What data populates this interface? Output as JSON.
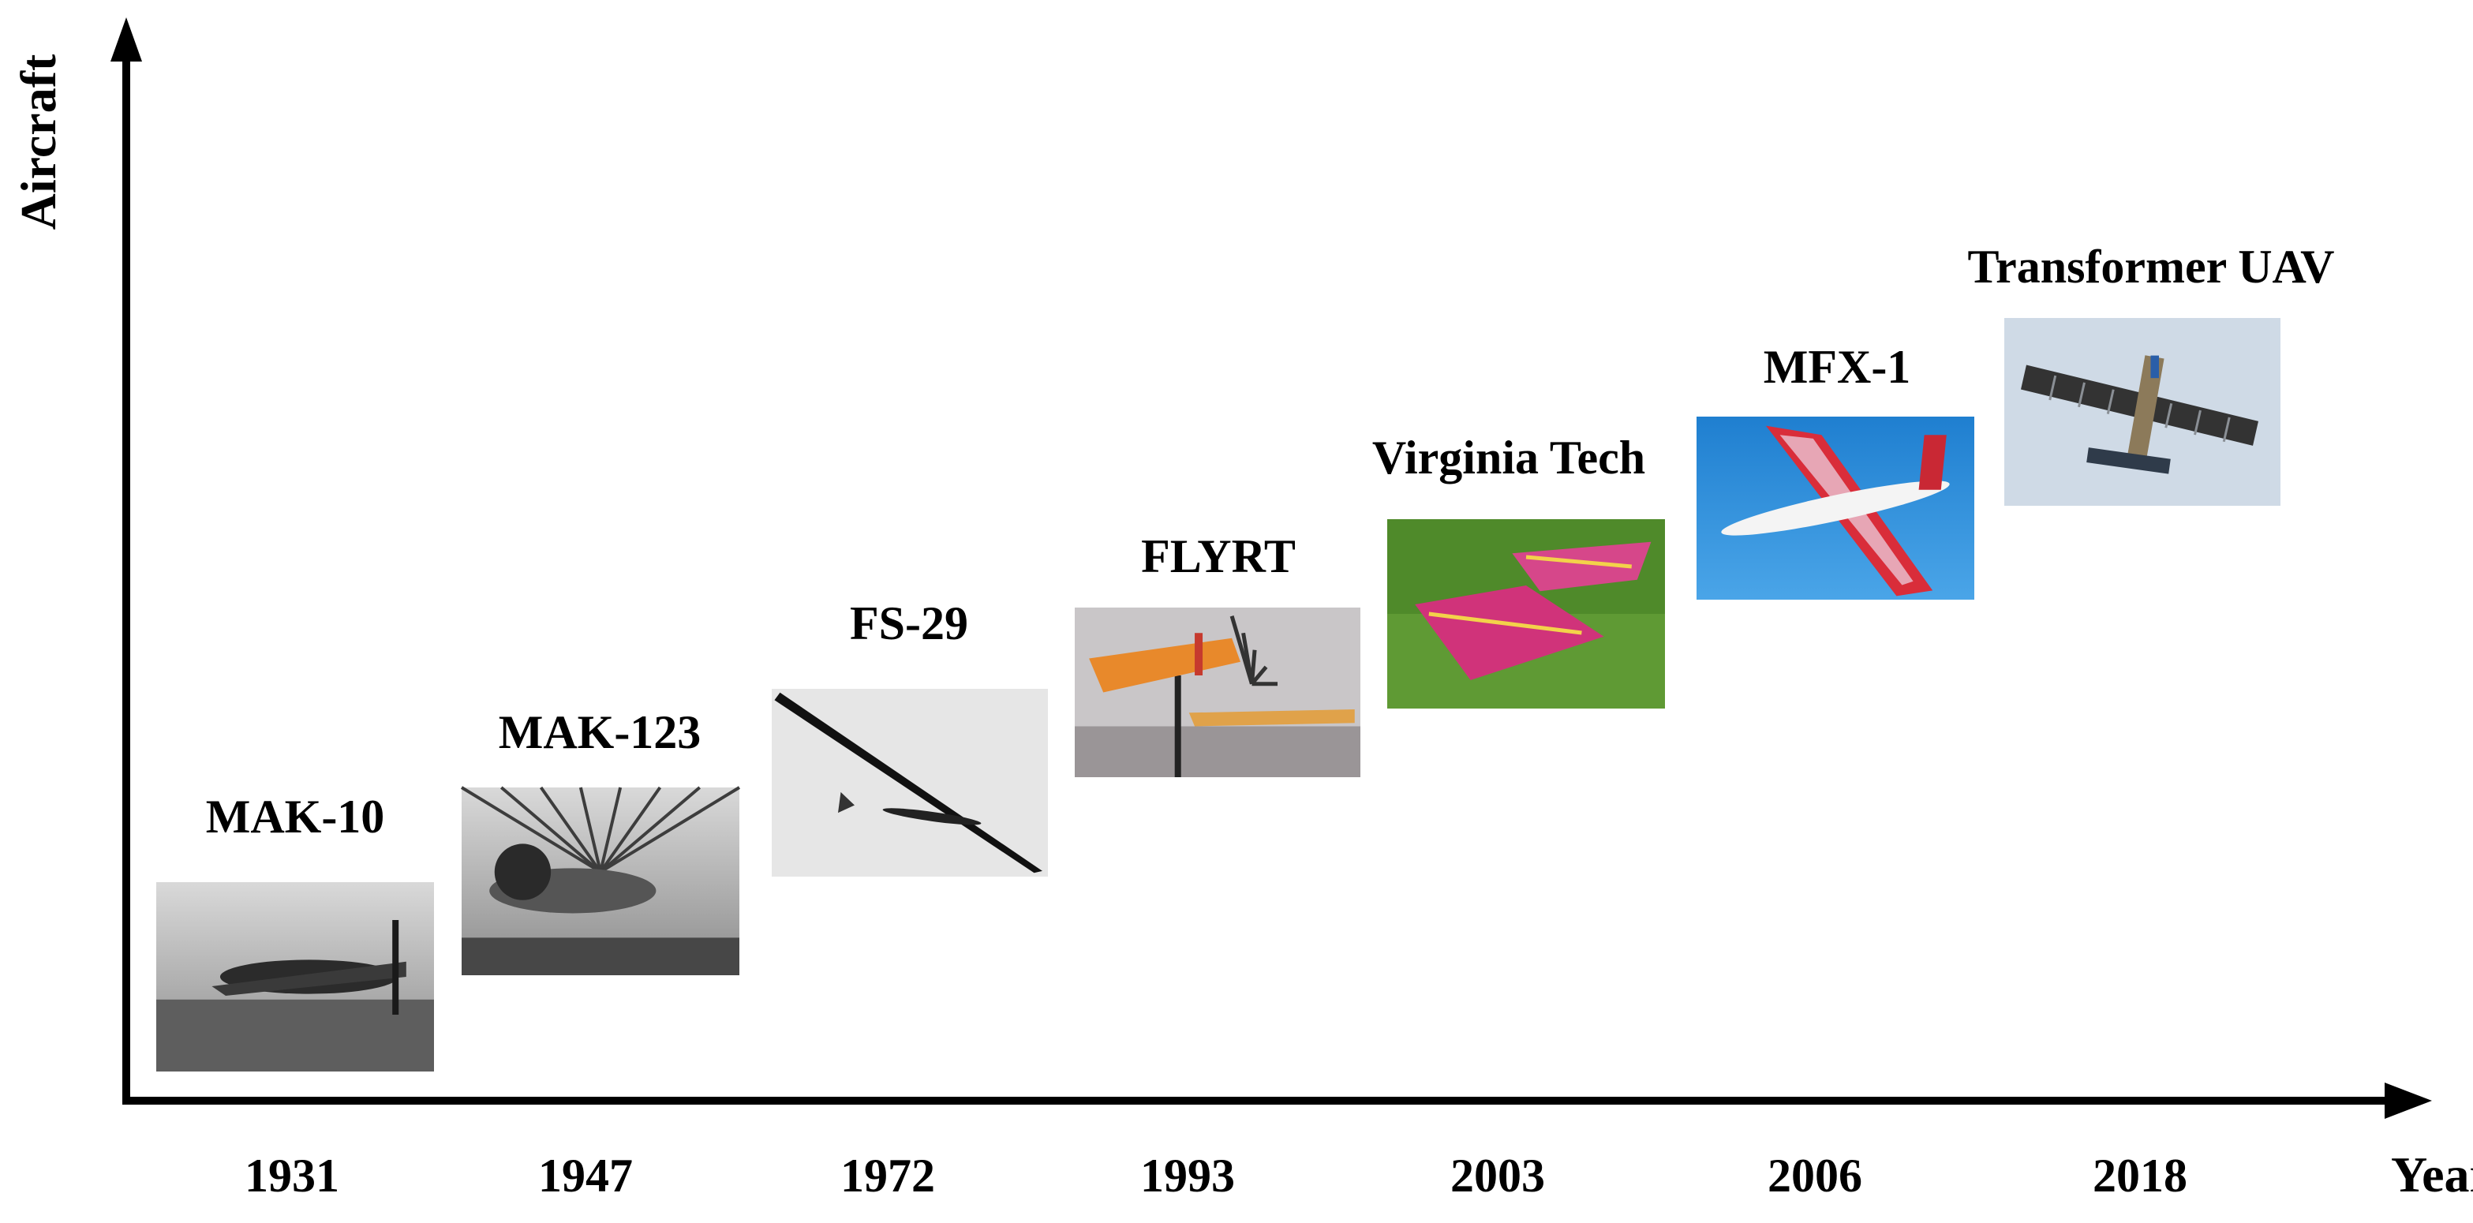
{
  "axes": {
    "y_label": "Aircraft",
    "x_label": "Year"
  },
  "timeline": [
    {
      "year": "1931",
      "aircraft": "MAK-10",
      "photo_icon": "vintage-monoplane-bw-photo",
      "tone": "bw"
    },
    {
      "year": "1947",
      "aircraft": "MAK-123",
      "photo_icon": "hangar-aircraft-bw-photo",
      "tone": "bw"
    },
    {
      "year": "1972",
      "aircraft": "FS-29",
      "photo_icon": "glider-in-flight-bw-photo",
      "tone": "bw"
    },
    {
      "year": "1993",
      "aircraft": "FLYRT",
      "photo_icon": "orange-model-on-stand-photo",
      "tone": "orange"
    },
    {
      "year": "2003",
      "aircraft": "Virginia Tech",
      "photo_icon": "pink-delta-models-on-grass-photo",
      "tone": "grass"
    },
    {
      "year": "2006",
      "aircraft": "MFX-1",
      "photo_icon": "red-morphing-uav-sky-photo",
      "tone": "sky"
    },
    {
      "year": "2018",
      "aircraft": "Transformer UAV",
      "photo_icon": "segmented-wing-uav-sky-photo",
      "tone": "sky2"
    }
  ],
  "colors": {
    "axis": "#000000",
    "bw_photo_bg": "#d9d9d9",
    "grass": "#4f8a2a",
    "sky": "#2f8fd8",
    "sky2": "#cfdae6",
    "magenta": "#d0337a",
    "orange": "#e8892b"
  }
}
